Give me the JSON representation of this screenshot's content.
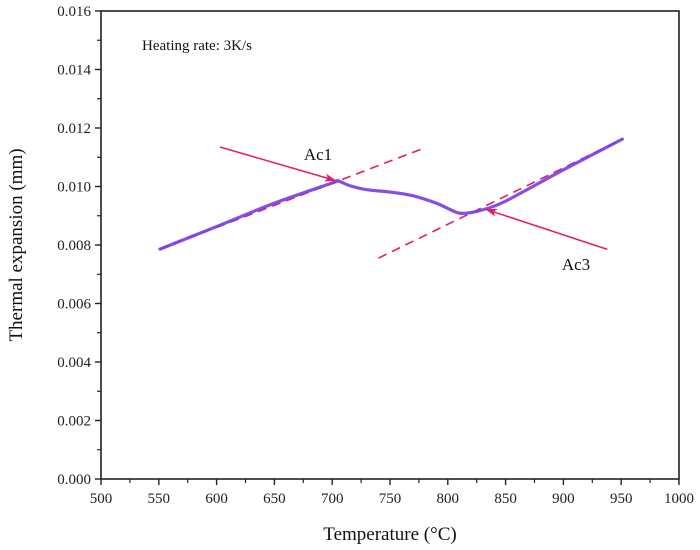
{
  "chart_data": {
    "type": "line",
    "title": "",
    "xlabel": "Temperature (°C)",
    "ylabel": "Thermal expansion (mm)",
    "xlim": [
      500,
      1000
    ],
    "ylim": [
      0,
      0.016
    ],
    "x_ticks": [
      "500",
      "550",
      "600",
      "650",
      "700",
      "750",
      "800",
      "850",
      "900",
      "950",
      "1000"
    ],
    "y_ticks": [
      "0.000",
      "0.002",
      "0.004",
      "0.006",
      "0.008",
      "0.010",
      "0.012",
      "0.014",
      "0.016"
    ],
    "grid": false,
    "inset_text": "Heating rate: 3K/s",
    "series": [
      {
        "name": "Thermal expansion",
        "color": "#7b3fe4",
        "x": [
          551,
          600,
          650,
          700,
          705,
          715,
          730,
          750,
          770,
          790,
          800,
          810,
          820,
          830,
          850,
          900,
          951
        ],
        "y": [
          0.00786,
          0.00863,
          0.00943,
          0.01012,
          0.01019,
          0.01003,
          0.00989,
          0.00981,
          0.00968,
          0.00943,
          0.00925,
          0.00909,
          0.00911,
          0.0092,
          0.0095,
          0.01057,
          0.01162
        ]
      }
    ],
    "tangent_lines": [
      {
        "name": "low-temperature tangent",
        "color": "#e8196b",
        "x": [
          551,
          780
        ],
        "y": [
          0.00786,
          0.01132
        ]
      },
      {
        "name": "high-temperature tangent",
        "color": "#e8196b",
        "x": [
          740,
          951
        ],
        "y": [
          0.00755,
          0.01162
        ]
      }
    ],
    "annotations": [
      {
        "label": "Ac1",
        "color": "#e8196b",
        "from": [
          603,
          0.01135
        ],
        "to": [
          703,
          0.0102
        ]
      },
      {
        "label": "Ac3",
        "color": "#e8196b",
        "from": [
          938,
          0.00785
        ],
        "to": [
          833,
          0.00922
        ]
      }
    ]
  }
}
